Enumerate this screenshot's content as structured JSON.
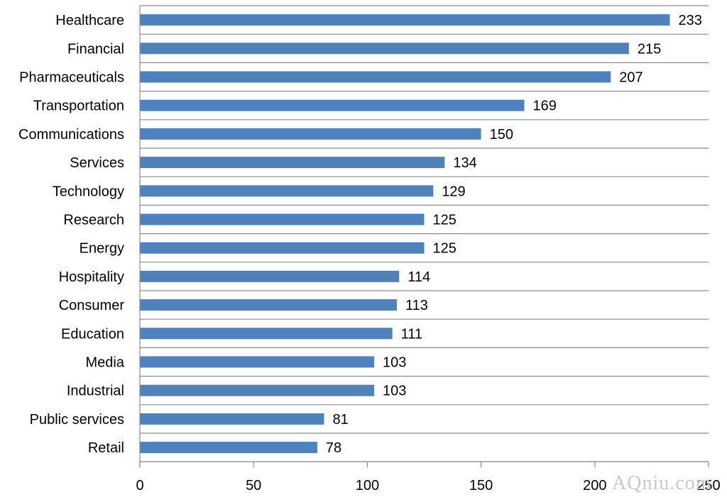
{
  "chart_data": {
    "type": "bar",
    "orientation": "horizontal",
    "categories": [
      "Healthcare",
      "Financial",
      "Pharmaceuticals",
      "Transportation",
      "Communications",
      "Services",
      "Technology",
      "Research",
      "Energy",
      "Hospitality",
      "Consumer",
      "Education",
      "Media",
      "Industrial",
      "Public services",
      "Retail"
    ],
    "values": [
      233,
      215,
      207,
      169,
      150,
      134,
      129,
      125,
      125,
      114,
      113,
      111,
      103,
      103,
      81,
      78
    ],
    "xlim": [
      0,
      250
    ],
    "xticks": [
      "0",
      "50",
      "100",
      "150",
      "200",
      "250"
    ],
    "bar_color": "#4f81bd",
    "gridlines": true,
    "data_labels": true,
    "title": "",
    "xlabel": "",
    "ylabel": ""
  },
  "watermark": "AQniu.com"
}
